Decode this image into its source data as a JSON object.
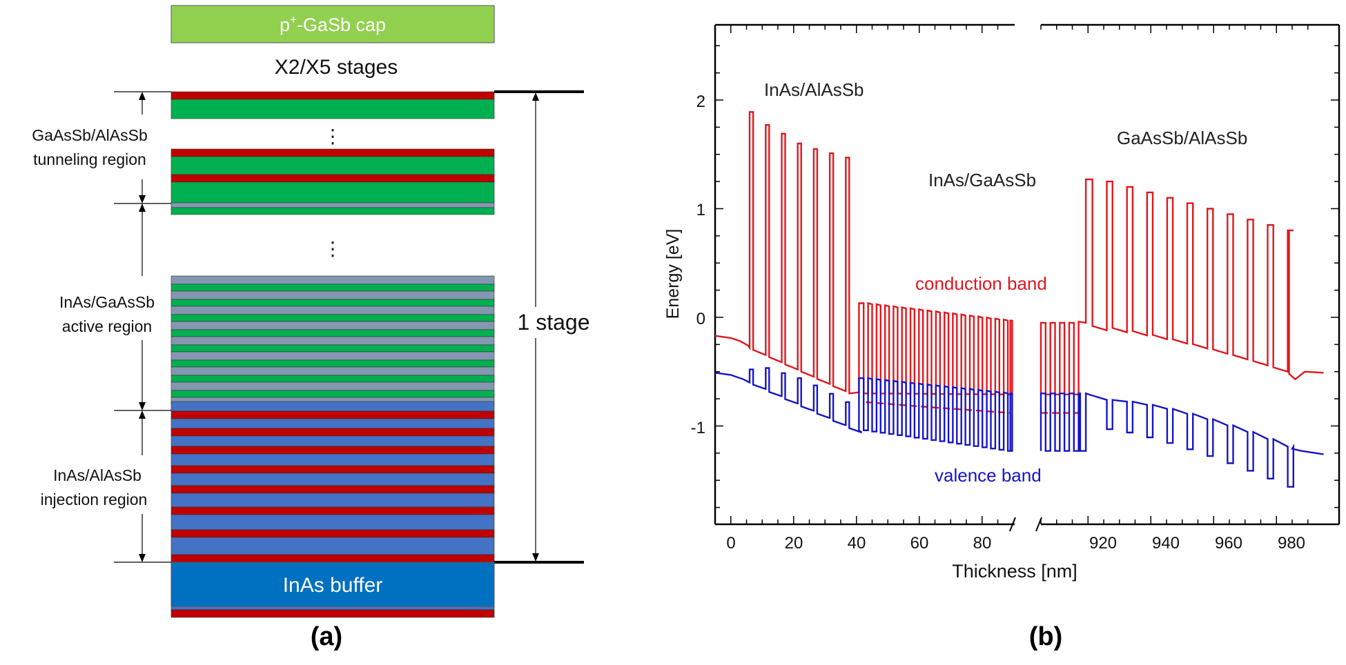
{
  "panel_a": {
    "cap_label_prefix": "p",
    "cap_label_sup": "+",
    "cap_label_suffix": "-GaSb cap",
    "stages_label": "X2/X5  stages",
    "dots": "⋮",
    "tunneling_line1": "GaAsSb/AlAsSb",
    "tunneling_line2": "tunneling region",
    "active_line1": "InAs/GaAsSb",
    "active_line2": "active region",
    "injection_line1": "InAs/AlAsSb",
    "injection_line2": "injection region",
    "stage_label": "1 stage",
    "buffer_label": "InAs buffer",
    "caption": "(a)",
    "colors": {
      "cap": "#92d050",
      "red": "#c00000",
      "green": "#00b050",
      "gray": "#8497b0",
      "blue": "#4472c4",
      "buffer": "#0070c0"
    }
  },
  "panel_b": {
    "ylabel": "Energy [eV]",
    "xlabel": "Thickness [nm]",
    "yticks": [
      "2",
      "1",
      "0",
      "-1"
    ],
    "xticks_left": [
      "0",
      "20",
      "40",
      "60",
      "80"
    ],
    "xticks_right": [
      "920",
      "940",
      "960",
      "980"
    ],
    "annot_inas_alassb": "InAs/AlAsSb",
    "annot_inas_gaassb": "InAs/GaAsSb",
    "annot_gaassb_alassb": "GaAsSb/AlAsSb",
    "annot_conduction": "conduction band",
    "annot_valence": "valence band",
    "caption": "(b)",
    "colors": {
      "conduction": "#e0161c",
      "valence": "#1414c8"
    }
  },
  "chart_data": {
    "type": "line",
    "xlabel": "Thickness [nm]",
    "ylabel": "Energy [eV]",
    "ylim": [
      -1.9,
      2.7
    ],
    "x_segments": [
      [
        -5,
        90
      ],
      [
        905,
        995
      ]
    ],
    "broken_x_axis": true,
    "series": [
      {
        "name": "conduction band",
        "color": "#e0161c",
        "envelope_low": [
          [
            -5,
            -0.17
          ],
          [
            5,
            -0.25
          ],
          [
            40,
            -0.68
          ],
          [
            90,
            -0.88
          ],
          [
            905,
            -0.88
          ],
          [
            918,
            -0.05
          ],
          [
            950,
            -0.12
          ],
          [
            980,
            -0.5
          ],
          [
            995,
            -0.5
          ]
        ],
        "envelope_high": [
          [
            6,
            1.89
          ],
          [
            13,
            1.77
          ],
          [
            20,
            1.69
          ],
          [
            25,
            1.6
          ],
          [
            30,
            1.55
          ],
          [
            35,
            1.51
          ],
          [
            39,
            1.47
          ],
          [
            41,
            0.13
          ],
          [
            60,
            0.05
          ],
          [
            88,
            -0.03
          ],
          [
            905,
            -0.05
          ],
          [
            916,
            -0.05
          ],
          [
            920,
            1.27
          ],
          [
            950,
            1.15
          ],
          [
            980,
            0.8
          ]
        ]
      },
      {
        "name": "valence band",
        "color": "#1414c8",
        "envelope_high": [
          [
            -5,
            -0.51
          ],
          [
            5,
            -0.56
          ],
          [
            40,
            -0.6
          ],
          [
            90,
            -0.7
          ],
          [
            905,
            -0.7
          ],
          [
            920,
            -0.72
          ],
          [
            950,
            -0.8
          ],
          [
            980,
            -1.15
          ],
          [
            995,
            -1.24
          ]
        ],
        "envelope_low": [
          [
            6,
            -0.57
          ],
          [
            40,
            -1.0
          ],
          [
            41,
            -1.0
          ],
          [
            90,
            -1.23
          ],
          [
            905,
            -1.23
          ],
          [
            918,
            -1.23
          ],
          [
            920,
            -0.95
          ],
          [
            950,
            -1.15
          ],
          [
            982,
            -1.56
          ],
          [
            995,
            -1.26
          ]
        ]
      }
    ]
  }
}
